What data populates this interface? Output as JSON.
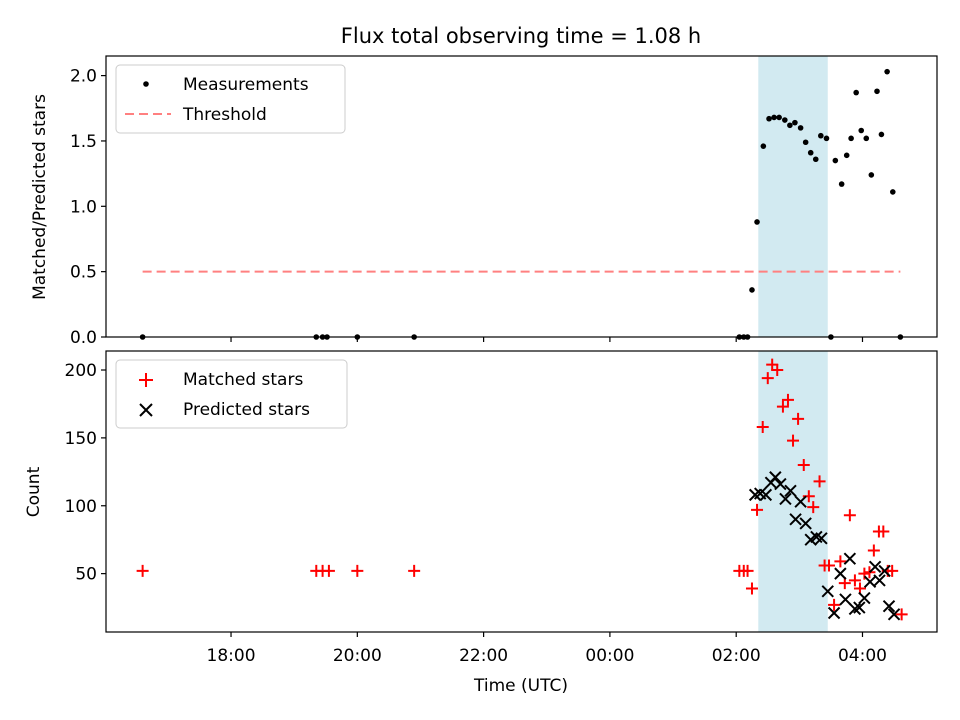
{
  "chart_data": {
    "title": "Flux total observing time = 1.08 h",
    "xlabel": "Time (UTC)",
    "x_ticks": [
      {
        "h": 18,
        "label": "18:00"
      },
      {
        "h": 20,
        "label": "20:00"
      },
      {
        "h": 22,
        "label": "22:00"
      },
      {
        "h": 24,
        "label": "00:00"
      },
      {
        "h": 26,
        "label": "02:00"
      },
      {
        "h": 28,
        "label": "04:00"
      }
    ],
    "xlim": [
      16.02,
      29.18
    ],
    "shaded_span": [
      26.35,
      27.45
    ],
    "shade_color": "#add8e6",
    "top": {
      "type": "scatter",
      "ylabel": "Matched/Predicted stars",
      "ylim": [
        0,
        2.15
      ],
      "yticks": [
        0.0,
        0.5,
        1.0,
        1.5,
        2.0
      ],
      "ytick_labels": [
        "0.0",
        "0.5",
        "1.0",
        "1.5",
        "2.0"
      ],
      "threshold": {
        "value": 0.5,
        "x_range": [
          16.6,
          28.6
        ],
        "color": "#ff8080"
      },
      "legend": [
        {
          "label": "Measurements",
          "kind": "dot"
        },
        {
          "label": "Threshold",
          "kind": "dashed"
        }
      ],
      "points": [
        [
          16.6,
          0
        ],
        [
          19.35,
          0
        ],
        [
          19.45,
          0
        ],
        [
          19.52,
          0
        ],
        [
          20.0,
          0
        ],
        [
          20.9,
          0
        ],
        [
          26.05,
          0
        ],
        [
          26.12,
          0
        ],
        [
          26.18,
          0
        ],
        [
          26.25,
          0.36
        ],
        [
          26.33,
          0.88
        ],
        [
          26.43,
          1.46
        ],
        [
          26.52,
          1.67
        ],
        [
          26.6,
          1.68
        ],
        [
          26.68,
          1.68
        ],
        [
          26.77,
          1.66
        ],
        [
          26.85,
          1.62
        ],
        [
          26.93,
          1.64
        ],
        [
          27.02,
          1.6
        ],
        [
          27.1,
          1.49
        ],
        [
          27.18,
          1.41
        ],
        [
          27.26,
          1.36
        ],
        [
          27.34,
          1.54
        ],
        [
          27.43,
          1.52
        ],
        [
          27.5,
          0
        ],
        [
          27.57,
          1.35
        ],
        [
          27.67,
          1.17
        ],
        [
          27.75,
          1.39
        ],
        [
          27.82,
          1.52
        ],
        [
          27.9,
          1.87
        ],
        [
          27.98,
          1.58
        ],
        [
          28.06,
          1.52
        ],
        [
          28.14,
          1.24
        ],
        [
          28.23,
          1.88
        ],
        [
          28.3,
          1.55
        ],
        [
          28.39,
          2.03
        ],
        [
          28.48,
          1.11
        ],
        [
          28.6,
          0
        ]
      ]
    },
    "bottom": {
      "type": "scatter",
      "ylabel": "Count",
      "ylim": [
        7,
        214
      ],
      "yticks": [
        50,
        100,
        150,
        200
      ],
      "ytick_labels": [
        "50",
        "100",
        "150",
        "200"
      ],
      "legend": [
        {
          "label": "Matched stars",
          "kind": "plus"
        },
        {
          "label": "Predicted stars",
          "kind": "x"
        }
      ],
      "matched": [
        [
          16.6,
          52
        ],
        [
          19.35,
          52
        ],
        [
          19.45,
          52
        ],
        [
          19.55,
          52
        ],
        [
          20.0,
          52
        ],
        [
          20.9,
          52
        ],
        [
          26.05,
          52
        ],
        [
          26.12,
          52
        ],
        [
          26.18,
          52
        ],
        [
          26.25,
          39
        ],
        [
          26.33,
          97
        ],
        [
          26.42,
          158
        ],
        [
          26.5,
          194
        ],
        [
          26.57,
          204
        ],
        [
          26.65,
          200
        ],
        [
          26.74,
          173
        ],
        [
          26.82,
          178
        ],
        [
          26.9,
          148
        ],
        [
          26.98,
          164
        ],
        [
          27.07,
          130
        ],
        [
          27.15,
          107
        ],
        [
          27.22,
          99
        ],
        [
          27.32,
          118
        ],
        [
          27.4,
          56
        ],
        [
          27.47,
          56
        ],
        [
          27.55,
          27
        ],
        [
          27.65,
          59
        ],
        [
          27.72,
          43
        ],
        [
          27.8,
          93
        ],
        [
          27.88,
          45
        ],
        [
          27.96,
          39
        ],
        [
          28.03,
          50
        ],
        [
          28.11,
          51
        ],
        [
          28.18,
          67
        ],
        [
          28.26,
          81
        ],
        [
          28.33,
          81
        ],
        [
          28.4,
          52
        ],
        [
          28.47,
          52
        ],
        [
          28.62,
          20
        ]
      ],
      "predicted": [
        [
          26.3,
          108
        ],
        [
          26.38,
          109
        ],
        [
          26.47,
          108
        ],
        [
          26.55,
          117
        ],
        [
          26.62,
          121
        ],
        [
          26.7,
          116
        ],
        [
          26.78,
          105
        ],
        [
          26.86,
          111
        ],
        [
          26.94,
          90
        ],
        [
          27.02,
          103
        ],
        [
          27.1,
          87
        ],
        [
          27.18,
          75
        ],
        [
          27.27,
          77
        ],
        [
          27.35,
          76
        ],
        [
          27.45,
          37
        ],
        [
          27.55,
          21
        ],
        [
          27.65,
          50
        ],
        [
          27.73,
          31
        ],
        [
          27.8,
          61
        ],
        [
          27.88,
          24
        ],
        [
          27.95,
          25
        ],
        [
          28.03,
          32
        ],
        [
          28.12,
          44
        ],
        [
          28.2,
          55
        ],
        [
          28.27,
          45
        ],
        [
          28.35,
          52
        ],
        [
          28.42,
          26
        ],
        [
          28.5,
          20
        ]
      ]
    }
  }
}
